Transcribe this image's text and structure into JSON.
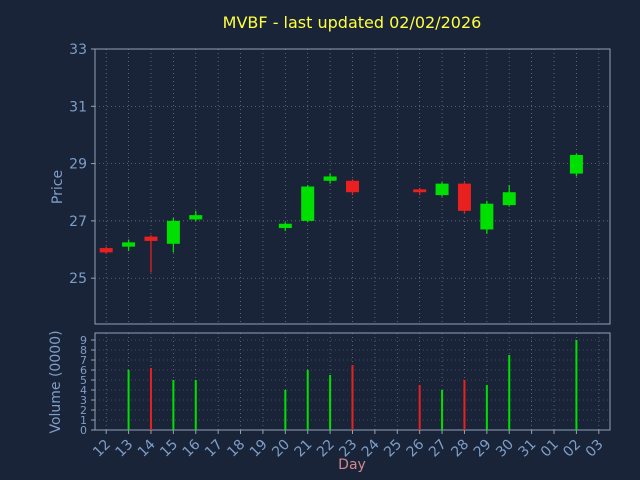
{
  "title": "MVBF - last updated 02/02/2026",
  "colors": {
    "background": "#1a2438",
    "up": "#00e000",
    "down": "#e82020",
    "grid": "#c8c8c8",
    "frame": "#93a1b8",
    "tick_label": "#7d9ec8",
    "title_color": "#ffff40",
    "xlabel_color": "#d08890"
  },
  "chart_data": {
    "type": "candlestick",
    "title": "MVBF - last updated 02/02/2026",
    "xlabel": "Day",
    "ylabel_price": "Price",
    "ylabel_volume": "Volume (0000)",
    "price_ticks": [
      25,
      27,
      29,
      31,
      33
    ],
    "price_ylim": [
      23.4,
      33
    ],
    "volume_ticks": [
      0,
      1,
      2,
      3,
      4,
      5,
      6,
      7,
      8,
      9
    ],
    "volume_ylim": [
      0,
      9.7
    ],
    "grid": "dotted",
    "categories": [
      "12",
      "13",
      "14",
      "15",
      "16",
      "17",
      "18",
      "19",
      "20",
      "21",
      "22",
      "23",
      "24",
      "25",
      "26",
      "27",
      "28",
      "29",
      "30",
      "31",
      "01",
      "02",
      "03"
    ],
    "candles": [
      {
        "day": "12",
        "open": 26.05,
        "high": 26.1,
        "low": 25.85,
        "close": 25.9,
        "volume": 0
      },
      {
        "day": "13",
        "open": 26.1,
        "high": 26.35,
        "low": 25.95,
        "close": 26.25,
        "volume": 6.0
      },
      {
        "day": "14",
        "open": 26.45,
        "high": 26.5,
        "low": 25.2,
        "close": 26.3,
        "volume": 6.2
      },
      {
        "day": "15",
        "open": 26.2,
        "high": 27.1,
        "low": 25.9,
        "close": 27.0,
        "volume": 5.0
      },
      {
        "day": "16",
        "open": 27.05,
        "high": 27.35,
        "low": 27.0,
        "close": 27.2,
        "volume": 5.0
      },
      null,
      null,
      null,
      {
        "day": "20",
        "open": 26.75,
        "high": 26.95,
        "low": 26.65,
        "close": 26.9,
        "volume": 4.0
      },
      {
        "day": "21",
        "open": 27.0,
        "high": 28.25,
        "low": 26.95,
        "close": 28.2,
        "volume": 6.0
      },
      {
        "day": "22",
        "open": 28.4,
        "high": 28.65,
        "low": 28.3,
        "close": 28.55,
        "volume": 5.5
      },
      {
        "day": "23",
        "open": 28.4,
        "high": 28.45,
        "low": 27.9,
        "close": 28.0,
        "volume": 6.5
      },
      null,
      null,
      {
        "day": "26",
        "open": 28.1,
        "high": 28.15,
        "low": 27.9,
        "close": 28.0,
        "volume": 4.5
      },
      {
        "day": "27",
        "open": 27.9,
        "high": 28.35,
        "low": 27.85,
        "close": 28.3,
        "volume": 4.0
      },
      {
        "day": "28",
        "open": 28.3,
        "high": 28.35,
        "low": 27.25,
        "close": 27.35,
        "volume": 5.0
      },
      {
        "day": "29",
        "open": 26.7,
        "high": 27.7,
        "low": 26.55,
        "close": 27.6,
        "volume": 4.5
      },
      {
        "day": "30",
        "open": 27.55,
        "high": 28.25,
        "low": 27.5,
        "close": 28.0,
        "volume": 7.5
      },
      null,
      null,
      {
        "day": "02",
        "open": 28.65,
        "high": 29.35,
        "low": 28.55,
        "close": 29.3,
        "volume": 9.0
      },
      null
    ]
  }
}
